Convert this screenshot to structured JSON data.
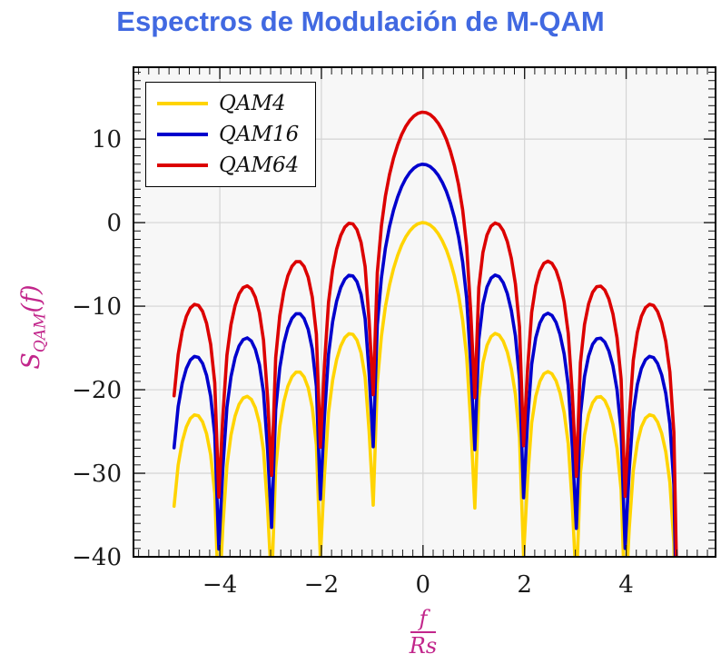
{
  "style": {
    "title_color": "#4169E1",
    "axis_label_color": "#C2268B",
    "plot_bg": "#f7f7f7",
    "grid_color": "#d4d4d4",
    "frame_color": "#000000",
    "tick_color": "#1a1a1a",
    "tick_label_color": "#1a1a1a"
  },
  "chart_data": {
    "type": "line",
    "title": "Espectros de Modulación de M-QAM",
    "xlabel": {
      "numerator": "f",
      "denominator": "Rs"
    },
    "ylabel": {
      "base": "S",
      "sub": "QAM",
      "args": "(f)"
    },
    "xlim": [
      -5.7,
      5.76
    ],
    "ylim": [
      -40,
      18.6
    ],
    "x_axis": {
      "major_ticks": [
        -4,
        -2,
        0,
        2,
        4
      ],
      "tick_labels": [
        "−4",
        "−2",
        "0",
        "2",
        "4"
      ],
      "minor_step": 0.2
    },
    "y_axis": {
      "major_ticks": [
        10,
        0,
        -10,
        -20,
        -30,
        -40
      ],
      "tick_labels": [
        "10",
        "0",
        "−10",
        "−20",
        "−30",
        "−40"
      ],
      "minor_step": 1
    },
    "grid": true,
    "legend_position": "top-left",
    "formula": "S_dB(f/Rs) = offset_dB + 20*log10(|sinc(f/Rs)|), sinc(u)=sin(pi*u)/(pi*u)",
    "sampling": {
      "x_start": -4.9,
      "x_end": 4.99,
      "step": 0.08
    },
    "clip_floor_db": -40,
    "series": [
      {
        "name": "QAM4",
        "color": "#FFD400",
        "offset_db": 0,
        "peak_db": 0,
        "first_sidelobe_db": -13.3,
        "edge_value_db_at_-4.9": -33.9
      },
      {
        "name": "QAM16",
        "color": "#0000CD",
        "offset_db": 6.99,
        "peak_db": 6.99,
        "first_sidelobe_db": -6.3,
        "edge_value_db_at_-4.9": -26.9
      },
      {
        "name": "QAM64",
        "color": "#DC0000",
        "offset_db": 13.22,
        "peak_db": 13.22,
        "first_sidelobe_db": -0.1,
        "edge_value_db_at_-4.9": -20.7
      }
    ]
  }
}
